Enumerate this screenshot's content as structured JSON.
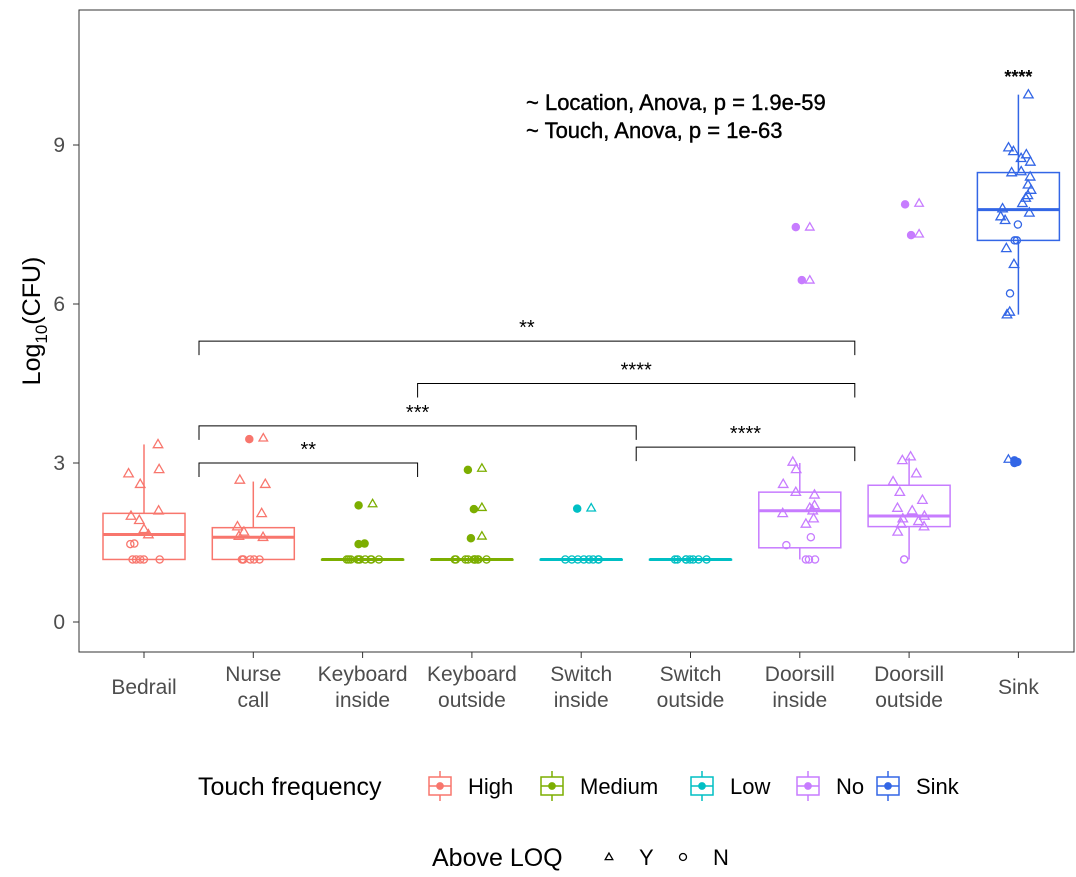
{
  "chart_data": {
    "type": "box",
    "title": "",
    "xlabel": "",
    "ylabel": {
      "prefix": "Log",
      "subscript": "10",
      "suffix": "(CFU)"
    },
    "ylim": [
      -0.5,
      11.6
    ],
    "yticks": [
      0,
      3,
      6,
      9
    ],
    "grid": false,
    "categories": [
      {
        "lines": [
          "Bedrail"
        ],
        "group": "High"
      },
      {
        "lines": [
          "Nurse",
          "call"
        ],
        "group": "High"
      },
      {
        "lines": [
          "Keyboard",
          "inside"
        ],
        "group": "Medium"
      },
      {
        "lines": [
          "Keyboard",
          "outside"
        ],
        "group": "Medium"
      },
      {
        "lines": [
          "Switch",
          "inside"
        ],
        "group": "Low"
      },
      {
        "lines": [
          "Switch",
          "outside"
        ],
        "group": "Low"
      },
      {
        "lines": [
          "Doorsill",
          "inside"
        ],
        "group": "No"
      },
      {
        "lines": [
          "Doorsill",
          "outside"
        ],
        "group": "No"
      },
      {
        "lines": [
          "Sink"
        ],
        "group": "Sink"
      }
    ],
    "groups": [
      {
        "name": "High",
        "color": "#F8766D"
      },
      {
        "name": "Medium",
        "color": "#7CAE00"
      },
      {
        "name": "Low",
        "color": "#00BFC4"
      },
      {
        "name": "No",
        "color": "#C77CFF"
      },
      {
        "name": "Sink",
        "color": "#3366E6"
      }
    ],
    "boxes": [
      {
        "min": 1.18,
        "q1": 1.18,
        "median": 1.65,
        "q3": 2.05,
        "max": 3.35
      },
      {
        "min": 1.18,
        "q1": 1.18,
        "median": 1.6,
        "q3": 1.78,
        "max": 2.65
      },
      {
        "min": 1.18,
        "q1": 1.18,
        "median": 1.18,
        "q3": 1.18,
        "max": 1.18
      },
      {
        "min": 1.18,
        "q1": 1.18,
        "median": 1.18,
        "q3": 1.18,
        "max": 1.18
      },
      {
        "min": 1.18,
        "q1": 1.18,
        "median": 1.18,
        "q3": 1.18,
        "max": 1.18
      },
      {
        "min": 1.18,
        "q1": 1.18,
        "median": 1.18,
        "q3": 1.18,
        "max": 1.18
      },
      {
        "min": 1.18,
        "q1": 1.4,
        "median": 2.1,
        "q3": 2.45,
        "max": 3.0
      },
      {
        "min": 1.18,
        "q1": 1.8,
        "median": 2.0,
        "q3": 2.58,
        "max": 3.1
      },
      {
        "min": 5.8,
        "q1": 7.2,
        "median": 7.78,
        "q3": 8.48,
        "max": 9.95
      }
    ],
    "outliers": [
      [],
      [
        [
          3.45,
          "N"
        ],
        [
          3.47,
          "Y"
        ]
      ],
      [
        [
          2.2,
          "N"
        ],
        [
          2.23,
          "Y"
        ],
        [
          1.48,
          "N"
        ],
        [
          1.47,
          "N"
        ]
      ],
      [
        [
          2.87,
          "N"
        ],
        [
          2.9,
          "Y"
        ],
        [
          2.13,
          "N"
        ],
        [
          2.16,
          "Y"
        ],
        [
          1.58,
          "N"
        ],
        [
          1.62,
          "Y"
        ]
      ],
      [
        [
          2.14,
          "N"
        ],
        [
          2.15,
          "Y"
        ]
      ],
      [],
      [
        [
          7.45,
          "N"
        ],
        [
          7.45,
          "Y"
        ],
        [
          6.45,
          "N"
        ],
        [
          6.45,
          "Y"
        ]
      ],
      [
        [
          7.88,
          "N"
        ],
        [
          7.9,
          "Y"
        ],
        [
          7.3,
          "N"
        ],
        [
          7.32,
          "Y"
        ]
      ],
      [
        [
          3.05,
          "N"
        ],
        [
          3.02,
          "N"
        ],
        [
          3.07,
          "Y"
        ],
        [
          3.0,
          "N"
        ]
      ]
    ],
    "points": [
      [
        [
          3.35,
          "Y"
        ],
        [
          2.88,
          "Y"
        ],
        [
          2.8,
          "Y"
        ],
        [
          2.6,
          "Y"
        ],
        [
          2.1,
          "Y"
        ],
        [
          2.0,
          "Y"
        ],
        [
          1.92,
          "Y"
        ],
        [
          1.75,
          "Y"
        ],
        [
          1.65,
          "Y"
        ],
        [
          1.48,
          "N"
        ],
        [
          1.47,
          "N"
        ],
        [
          1.18,
          "N"
        ],
        [
          1.18,
          "N"
        ],
        [
          1.18,
          "N"
        ],
        [
          1.18,
          "N"
        ],
        [
          1.18,
          "N"
        ]
      ],
      [
        [
          2.68,
          "Y"
        ],
        [
          2.6,
          "Y"
        ],
        [
          2.05,
          "Y"
        ],
        [
          1.8,
          "Y"
        ],
        [
          1.7,
          "Y"
        ],
        [
          1.62,
          "Y"
        ],
        [
          1.6,
          "Y"
        ],
        [
          1.18,
          "N"
        ],
        [
          1.18,
          "N"
        ],
        [
          1.18,
          "N"
        ],
        [
          1.18,
          "N"
        ],
        [
          1.18,
          "N"
        ],
        [
          1.18,
          "N"
        ]
      ],
      [
        [
          1.18,
          "N"
        ],
        [
          1.18,
          "N"
        ],
        [
          1.18,
          "N"
        ],
        [
          1.18,
          "N"
        ],
        [
          1.18,
          "N"
        ],
        [
          1.18,
          "N"
        ],
        [
          1.18,
          "N"
        ],
        [
          1.18,
          "N"
        ],
        [
          1.18,
          "N"
        ],
        [
          1.18,
          "N"
        ]
      ],
      [
        [
          1.18,
          "N"
        ],
        [
          1.18,
          "N"
        ],
        [
          1.18,
          "N"
        ],
        [
          1.18,
          "N"
        ],
        [
          1.18,
          "N"
        ],
        [
          1.18,
          "N"
        ],
        [
          1.18,
          "N"
        ],
        [
          1.18,
          "N"
        ],
        [
          1.18,
          "N"
        ],
        [
          1.18,
          "N"
        ]
      ],
      [
        [
          1.18,
          "N"
        ],
        [
          1.18,
          "N"
        ],
        [
          1.18,
          "N"
        ],
        [
          1.18,
          "N"
        ],
        [
          1.18,
          "N"
        ],
        [
          1.18,
          "N"
        ],
        [
          1.18,
          "N"
        ],
        [
          1.18,
          "N"
        ]
      ],
      [
        [
          1.18,
          "N"
        ],
        [
          1.18,
          "N"
        ],
        [
          1.18,
          "N"
        ],
        [
          1.18,
          "N"
        ],
        [
          1.18,
          "N"
        ],
        [
          1.18,
          "N"
        ],
        [
          1.18,
          "N"
        ],
        [
          1.18,
          "N"
        ]
      ],
      [
        [
          3.02,
          "Y"
        ],
        [
          2.88,
          "Y"
        ],
        [
          2.6,
          "Y"
        ],
        [
          2.45,
          "Y"
        ],
        [
          2.4,
          "Y"
        ],
        [
          2.2,
          "Y"
        ],
        [
          2.15,
          "Y"
        ],
        [
          2.1,
          "Y"
        ],
        [
          2.05,
          "Y"
        ],
        [
          1.95,
          "Y"
        ],
        [
          1.85,
          "Y"
        ],
        [
          1.6,
          "N"
        ],
        [
          1.45,
          "N"
        ],
        [
          1.18,
          "N"
        ],
        [
          1.18,
          "N"
        ],
        [
          1.18,
          "N"
        ]
      ],
      [
        [
          3.12,
          "Y"
        ],
        [
          3.05,
          "Y"
        ],
        [
          2.8,
          "Y"
        ],
        [
          2.65,
          "Y"
        ],
        [
          2.45,
          "Y"
        ],
        [
          2.3,
          "Y"
        ],
        [
          2.15,
          "Y"
        ],
        [
          2.1,
          "Y"
        ],
        [
          2.0,
          "Y"
        ],
        [
          1.95,
          "Y"
        ],
        [
          1.9,
          "Y"
        ],
        [
          1.85,
          "Y"
        ],
        [
          1.8,
          "Y"
        ],
        [
          1.7,
          "Y"
        ],
        [
          1.18,
          "N"
        ],
        [
          1.18,
          "N"
        ]
      ],
      [
        [
          9.95,
          "Y"
        ],
        [
          8.95,
          "Y"
        ],
        [
          8.88,
          "Y"
        ],
        [
          8.82,
          "Y"
        ],
        [
          8.75,
          "Y"
        ],
        [
          8.68,
          "Y"
        ],
        [
          8.5,
          "Y"
        ],
        [
          8.48,
          "Y"
        ],
        [
          8.4,
          "Y"
        ],
        [
          8.25,
          "Y"
        ],
        [
          8.15,
          "Y"
        ],
        [
          8.05,
          "Y"
        ],
        [
          8.0,
          "Y"
        ],
        [
          7.9,
          "Y"
        ],
        [
          7.8,
          "Y"
        ],
        [
          7.72,
          "Y"
        ],
        [
          7.65,
          "Y"
        ],
        [
          7.58,
          "Y"
        ],
        [
          7.5,
          "N"
        ],
        [
          7.2,
          "N"
        ],
        [
          7.2,
          "N"
        ],
        [
          7.05,
          "Y"
        ],
        [
          6.75,
          "Y"
        ],
        [
          6.2,
          "N"
        ],
        [
          5.85,
          "Y"
        ],
        [
          5.8,
          "Y"
        ]
      ]
    ],
    "significance": [
      {
        "from": 0,
        "to": 6,
        "y": 5.3,
        "label": "**"
      },
      {
        "from": 2,
        "to": 6,
        "y": 4.5,
        "label": "****"
      },
      {
        "from": 0,
        "to": 4,
        "y": 3.7,
        "label": "***"
      },
      {
        "from": 4,
        "to": 6,
        "y": 3.3,
        "label": "****"
      },
      {
        "from": 0,
        "to": 2,
        "y": 3.0,
        "label": "**"
      }
    ],
    "top_label": {
      "category": 8,
      "y": 10.25,
      "label": "****"
    },
    "annotations": [
      "~ Location, Anova, p = 1.9e-59",
      "~ Touch, Anova, p = 1e-63"
    ],
    "legend": {
      "position": "bottom",
      "color_title": "Touch frequency",
      "shape_title": "Above LOQ",
      "shapes": [
        {
          "name": "Y",
          "shape": "triangle"
        },
        {
          "name": "N",
          "shape": "circle"
        }
      ]
    }
  }
}
